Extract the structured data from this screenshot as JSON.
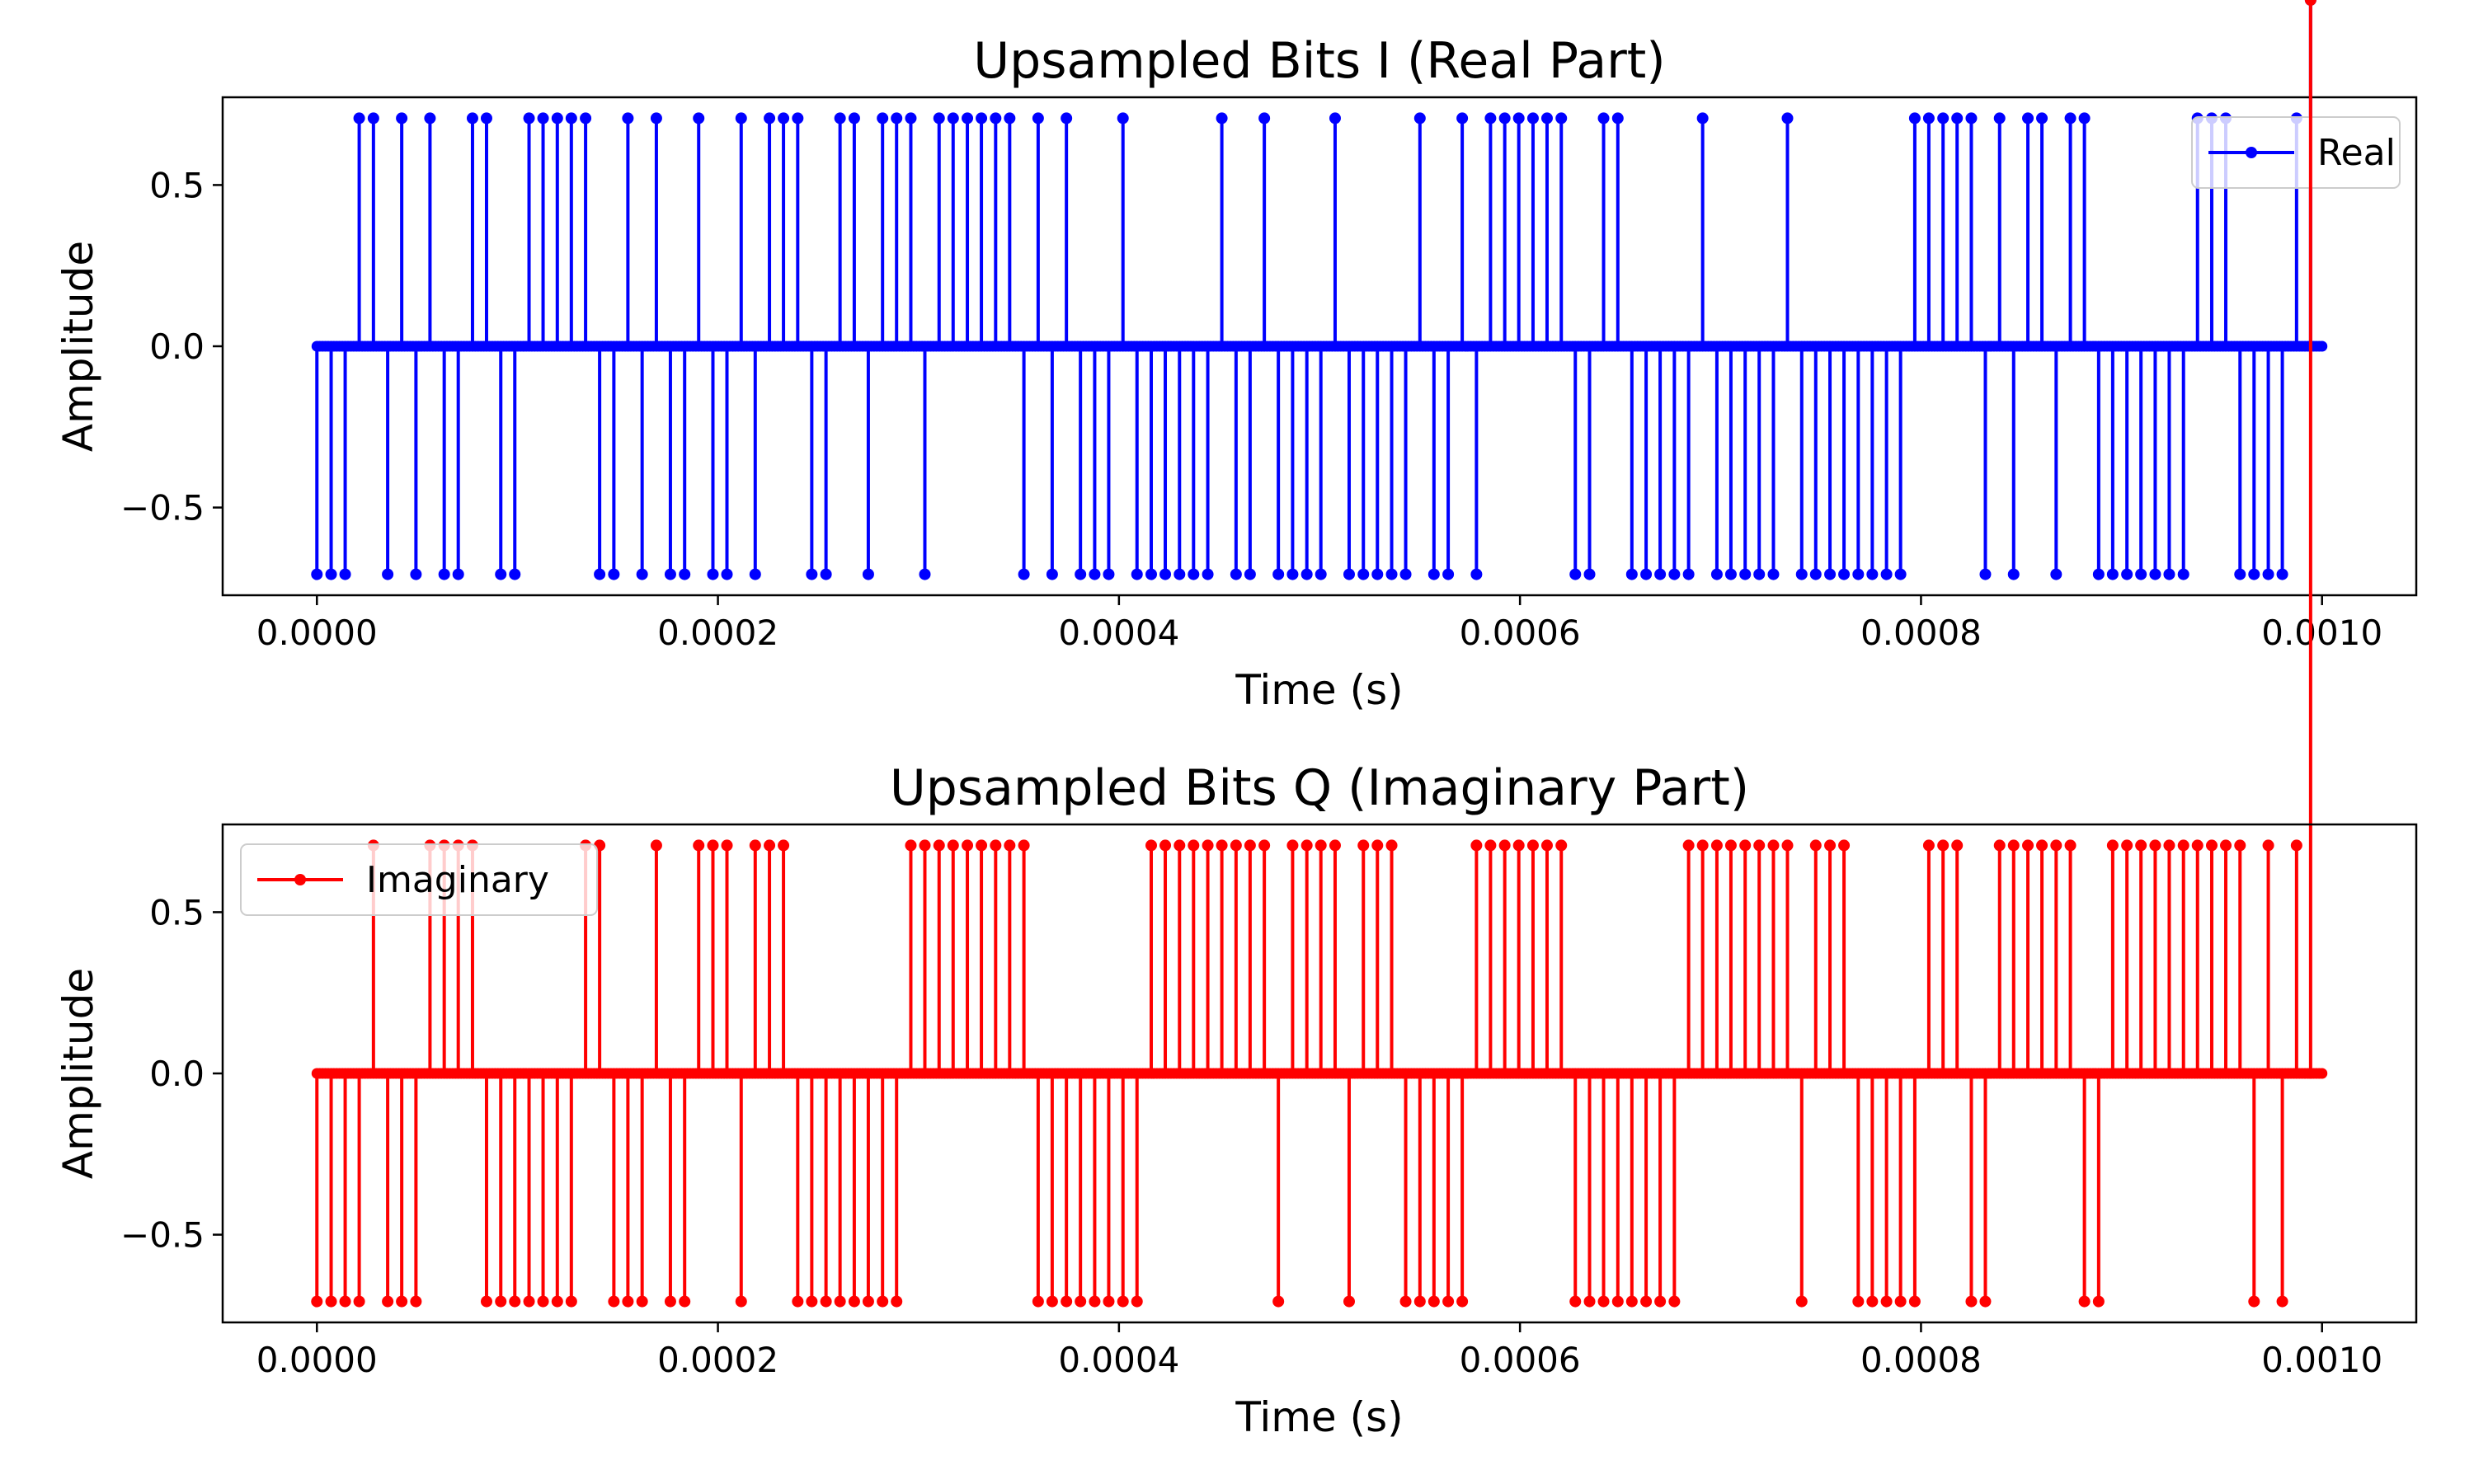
{
  "chart_data": [
    {
      "type": "stem",
      "title": "Upsampled Bits I (Real Part)",
      "xlabel": "Time (s)",
      "ylabel": "Amplitude",
      "xlim": [
        -4.7e-05,
        0.001047
      ],
      "ylim": [
        -0.772,
        0.772
      ],
      "xticks": [
        0.0,
        0.0002,
        0.0004,
        0.0006,
        0.0008,
        0.001
      ],
      "xtick_labels": [
        "0.0000",
        "0.0002",
        "0.0004",
        "0.0006",
        "0.0008",
        "0.0010"
      ],
      "yticks": [
        -0.5,
        0.0,
        0.5
      ],
      "ytick_labels": [
        "−0.5",
        "0.0",
        "0.5"
      ],
      "grid": false,
      "legend": {
        "position": "top-right",
        "entries": [
          {
            "label": "Real",
            "color": "#0000ff"
          }
        ]
      },
      "series": [
        {
          "name": "Real",
          "color": "#0000ff",
          "bottom": 0.0,
          "samples_per_symbol": 5,
          "x_start": 0.0,
          "x_step": 1.4104372355430186e-06,
          "x_end": 0.001,
          "pulse_amplitude": 0.7071,
          "pulse_x": [
            0.0,
            7.1e-06,
            1.41e-05,
            2.11e-05,
            2.82e-05,
            3.53e-05,
            4.23e-05,
            4.94e-05,
            5.64e-05,
            6.35e-05,
            7.05e-05,
            7.76e-05,
            8.46e-05,
            9.17e-05,
            9.87e-05,
            0.0001058,
            0.0001128,
            0.0001199,
            0.0001269,
            0.000134,
            0.000141,
            0.0001481,
            0.0001551,
            0.0001622,
            0.0001693,
            0.0001763,
            0.0001834,
            0.0001904,
            0.0001975,
            0.0002045,
            0.0002116,
            0.0002186,
            0.0002257,
            0.0002327,
            0.0002398,
            0.0002468,
            0.0002539,
            0.0002609,
            0.000268,
            0.000275,
            0.0002821,
            0.0002891,
            0.0002962,
            0.0003032,
            0.0003103,
            0.0003173,
            0.0003244,
            0.0003314,
            0.0003385,
            0.0003455,
            0.0003526,
            0.0003597,
            0.0003667,
            0.0003738,
            0.0003808,
            0.0003879,
            0.0003949,
            0.000402,
            0.000409,
            0.0004161,
            0.0004231,
            0.0004302,
            0.0004372,
            0.0004443,
            0.0004513,
            0.0004584,
            0.0004654,
            0.0004725,
            0.0004795,
            0.0004866,
            0.0004937,
            0.0005007,
            0.0005078,
            0.0005148,
            0.0005219,
            0.0005289,
            0.000536,
            0.000543,
            0.0005501,
            0.0005571,
            0.0005642,
            0.0005712,
            0.0005783,
            0.0005853,
            0.0005924,
            0.0005994,
            0.0006065,
            0.0006135,
            0.0006206,
            0.0006276,
            0.0006347,
            0.0006417,
            0.0006488,
            0.0006558,
            0.0006629,
            0.0006699,
            0.000677,
            0.0006841,
            0.0006911,
            0.0006982,
            0.0007052,
            0.0007123,
            0.0007193,
            0.0007264,
            0.0007334,
            0.0007405,
            0.0007475,
            0.0007546,
            0.0007616,
            0.0007687,
            0.0007757,
            0.0007828,
            0.0007898,
            0.0007969,
            0.0008039,
            0.000811,
            0.000818,
            0.0008251,
            0.0008321,
            0.0008392,
            0.0008462,
            0.0008533,
            0.0008603,
            0.0008674,
            0.0008745,
            0.0008815,
            0.0008886,
            0.0008956,
            0.0009027,
            0.0009097,
            0.0009168,
            0.0009238,
            0.0009309,
            0.0009379,
            0.000945,
            0.000952,
            0.0009591,
            0.0009661,
            0.0009732,
            0.0009802,
            0.0009873,
            0.0009943
          ],
          "pulse_sign": [
            -1,
            -1,
            -1,
            1,
            1,
            -1,
            1,
            -1,
            1,
            -1,
            -1,
            1,
            1,
            -1,
            -1,
            1,
            1,
            1,
            1,
            1,
            -1,
            -1,
            1,
            -1,
            1,
            -1,
            -1,
            1,
            -1,
            -1,
            1,
            -1,
            1,
            1,
            1,
            -1,
            -1,
            1,
            1,
            -1,
            1,
            1,
            1,
            -1,
            1,
            1,
            1,
            1,
            1,
            1,
            -1,
            1,
            -1,
            1,
            -1,
            -1,
            -1,
            1,
            -1,
            -1,
            -1,
            -1,
            -1,
            -1,
            1,
            -1,
            -1,
            1,
            -1,
            -1,
            -1,
            -1,
            1,
            -1,
            -1,
            -1,
            -1,
            -1,
            1,
            -1,
            -1,
            1,
            -1,
            1,
            1,
            1,
            1,
            1,
            1,
            -1,
            -1,
            1,
            1,
            -1,
            -1,
            -1,
            -1,
            -1,
            1,
            -1,
            -1,
            -1,
            -1,
            -1,
            1,
            -1,
            -1,
            -1,
            -1,
            -1,
            -1,
            -1,
            -1,
            1,
            1,
            1,
            1,
            1,
            -1,
            1,
            -1,
            1,
            1,
            -1,
            1,
            1,
            -1,
            -1,
            -1,
            -1,
            -1,
            -1,
            -1,
            1,
            1,
            1,
            -1,
            -1,
            -1,
            -1,
            1
          ]
        }
      ]
    },
    {
      "type": "stem",
      "title": "Upsampled Bits Q (Imaginary Part)",
      "xlabel": "Time (s)",
      "ylabel": "Amplitude",
      "xlim": [
        -4.7e-05,
        0.001047
      ],
      "ylim": [
        -0.772,
        0.772
      ],
      "xticks": [
        0.0,
        0.0002,
        0.0004,
        0.0006,
        0.0008,
        0.001
      ],
      "xtick_labels": [
        "0.0000",
        "0.0002",
        "0.0004",
        "0.0006",
        "0.0008",
        "0.0010"
      ],
      "yticks": [
        -0.5,
        0.0,
        0.5
      ],
      "ytick_labels": [
        "−0.5",
        "0.0",
        "0.5"
      ],
      "grid": false,
      "legend": {
        "position": "top-left",
        "entries": [
          {
            "label": "Imaginary",
            "color": "#ff0000"
          }
        ]
      },
      "series": [
        {
          "name": "Imaginary",
          "color": "#ff0000",
          "bottom": 0.0,
          "samples_per_symbol": 5,
          "x_start": 0.0,
          "x_step": 1.4104372355430186e-06,
          "x_end": 0.001,
          "pulse_amplitude": 0.7071,
          "pulse_x": [
            0.0,
            7.1e-06,
            1.41e-05,
            2.11e-05,
            2.82e-05,
            3.53e-05,
            4.23e-05,
            4.94e-05,
            5.64e-05,
            6.35e-05,
            7.05e-05,
            7.76e-05,
            8.46e-05,
            9.17e-05,
            9.87e-05,
            0.0001058,
            0.0001128,
            0.0001199,
            0.0001269,
            0.000134,
            0.000141,
            0.0001481,
            0.0001551,
            0.0001622,
            0.0001693,
            0.0001763,
            0.0001834,
            0.0001904,
            0.0001975,
            0.0002045,
            0.0002116,
            0.0002186,
            0.0002257,
            0.0002327,
            0.0002398,
            0.0002468,
            0.0002539,
            0.0002609,
            0.000268,
            0.000275,
            0.0002821,
            0.0002891,
            0.0002962,
            0.0003032,
            0.0003103,
            0.0003173,
            0.0003244,
            0.0003314,
            0.0003385,
            0.0003455,
            0.0003526,
            0.0003597,
            0.0003667,
            0.0003738,
            0.0003808,
            0.0003879,
            0.0003949,
            0.000402,
            0.000409,
            0.0004161,
            0.0004231,
            0.0004302,
            0.0004372,
            0.0004443,
            0.0004513,
            0.0004584,
            0.0004654,
            0.0004725,
            0.0004795,
            0.0004866,
            0.0004937,
            0.0005007,
            0.0005078,
            0.0005148,
            0.0005219,
            0.0005289,
            0.000536,
            0.000543,
            0.0005501,
            0.0005571,
            0.0005642,
            0.0005712,
            0.0005783,
            0.0005853,
            0.0005924,
            0.0005994,
            0.0006065,
            0.0006135,
            0.0006206,
            0.0006276,
            0.0006347,
            0.0006417,
            0.0006488,
            0.0006558,
            0.0006629,
            0.0006699,
            0.000677,
            0.0006841,
            0.0006911,
            0.0006982,
            0.0007052,
            0.0007123,
            0.0007193,
            0.0007264,
            0.0007334,
            0.0007405,
            0.0007475,
            0.0007546,
            0.0007616,
            0.0007687,
            0.0007757,
            0.0007828,
            0.0007898,
            0.0007969,
            0.0008039,
            0.000811,
            0.000818,
            0.0008251,
            0.0008321,
            0.0008392,
            0.0008462,
            0.0008533,
            0.0008603,
            0.0008674,
            0.0008745,
            0.0008815,
            0.0008886,
            0.0008956,
            0.0009027,
            0.0009097,
            0.0009168,
            0.0009238,
            0.0009309,
            0.0009379,
            0.000945,
            0.000952,
            0.0009591,
            0.0009661,
            0.0009732,
            0.0009802,
            0.0009873,
            0.0009943
          ],
          "pulse_sign": [
            -1,
            -1,
            -1,
            -1,
            1,
            -1,
            -1,
            -1,
            1,
            1,
            1,
            1,
            -1,
            -1,
            -1,
            -1,
            -1,
            -1,
            -1,
            1,
            1,
            -1,
            -1,
            -1,
            1,
            -1,
            -1,
            1,
            1,
            1,
            -1,
            1,
            1,
            1,
            -1,
            -1,
            -1,
            -1,
            -1,
            -1,
            -1,
            -1,
            1,
            1,
            1,
            1,
            1,
            1,
            1,
            1,
            1,
            -1,
            -1,
            -1,
            -1,
            -1,
            -1,
            -1,
            -1,
            1,
            1,
            1,
            1,
            1,
            1,
            1,
            1,
            1,
            -1,
            1,
            1,
            1,
            1,
            -1,
            1,
            1,
            1,
            -1,
            -1,
            -1,
            -1,
            -1,
            1,
            1,
            1,
            1,
            1,
            1,
            1,
            -1,
            -1,
            -1,
            -1,
            -1,
            -1,
            -1,
            -1,
            1,
            1,
            1,
            1,
            1,
            1,
            1,
            1,
            -1,
            1,
            1,
            1,
            -1,
            -1,
            -1,
            -1,
            -1,
            1,
            1,
            1,
            -1,
            -1,
            1,
            1,
            1,
            1,
            1,
            1,
            -1,
            -1,
            1,
            1,
            1,
            1,
            1,
            1,
            1,
            1,
            1,
            1,
            -1,
            1,
            -1,
            1
          ]
        }
      ]
    }
  ]
}
